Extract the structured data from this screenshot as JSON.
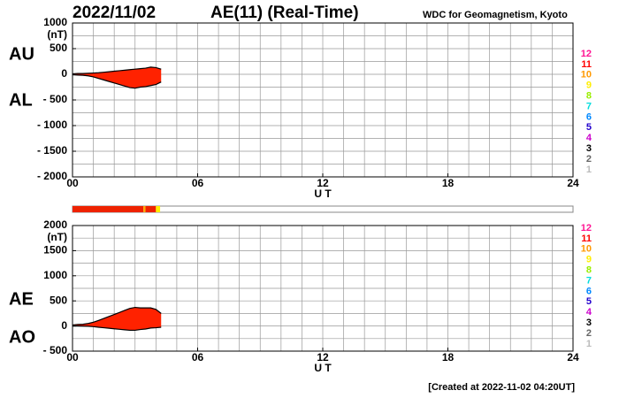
{
  "header": {
    "date": "2022/11/02",
    "title": "AE(11) (Real-Time)",
    "source": "WDC for Geomagnetism, Kyoto"
  },
  "footer": "[Created at 2022-11-02 04:20UT]",
  "station_counts": [
    {
      "label": "12",
      "color": "#ff1493"
    },
    {
      "label": "11",
      "color": "#ff0000"
    },
    {
      "label": "10",
      "color": "#ff9900"
    },
    {
      "label": "9",
      "color": "#ffee00"
    },
    {
      "label": "8",
      "color": "#99ee00"
    },
    {
      "label": "7",
      "color": "#00dddd"
    },
    {
      "label": "6",
      "color": "#0088ff"
    },
    {
      "label": "5",
      "color": "#2200cc"
    },
    {
      "label": "4",
      "color": "#cc00cc"
    },
    {
      "label": "3",
      "color": "#000000"
    },
    {
      "label": "2",
      "color": "#666666"
    },
    {
      "label": "1",
      "color": "#bbbbbb"
    }
  ],
  "coverage": [
    {
      "start": 0,
      "end": 3.4,
      "color": "#ee2200"
    },
    {
      "start": 3.4,
      "end": 3.5,
      "color": "#ffaa00"
    },
    {
      "start": 3.5,
      "end": 4.0,
      "color": "#ee2200"
    },
    {
      "start": 4.0,
      "end": 4.2,
      "color": "#ffee00"
    }
  ],
  "coverage_xlim": [
    0,
    24
  ],
  "chart_data": [
    {
      "type": "area",
      "ylabel": "(nT)",
      "xlabel": "U T",
      "color": "#ff2200",
      "grid": true,
      "x": [
        0,
        0.25,
        0.5,
        0.75,
        1,
        1.25,
        1.5,
        1.75,
        2,
        2.25,
        2.5,
        2.75,
        3,
        3.25,
        3.5,
        3.75,
        4,
        4.25
      ],
      "series": [
        {
          "name": "AU",
          "color": "#000000",
          "values": [
            10,
            15,
            15,
            20,
            25,
            30,
            40,
            50,
            60,
            70,
            80,
            90,
            100,
            110,
            120,
            140,
            130,
            100
          ]
        },
        {
          "name": "AL",
          "color": "#000000",
          "values": [
            -10,
            -15,
            -20,
            -30,
            -50,
            -80,
            -110,
            -140,
            -170,
            -200,
            -230,
            -260,
            -270,
            -250,
            -240,
            -220,
            -200,
            -150
          ]
        }
      ],
      "xlim": [
        0,
        24
      ],
      "xticks": [
        {
          "value": 0,
          "label": "00"
        },
        {
          "value": 6,
          "label": "06"
        },
        12,
        18,
        24
      ],
      "ylim": [
        -2000,
        1000
      ],
      "yticks": [
        1000,
        500,
        0,
        {
          "value": -500,
          "label": "- 500"
        },
        {
          "value": -1000,
          "label": "- 1000"
        },
        {
          "value": -1500,
          "label": "- 1500"
        },
        {
          "value": -2000,
          "label": "- 2000"
        }
      ]
    },
    {
      "type": "area",
      "ylabel": "(nT)",
      "xlabel": "U T",
      "color": "#ff2200",
      "grid": true,
      "x": [
        0,
        0.25,
        0.5,
        0.75,
        1,
        1.25,
        1.5,
        1.75,
        2,
        2.25,
        2.5,
        2.75,
        3,
        3.25,
        3.5,
        3.75,
        4,
        4.25
      ],
      "series": [
        {
          "name": "AE",
          "color": "#000000",
          "values": [
            20,
            30,
            35,
            50,
            75,
            110,
            150,
            190,
            230,
            270,
            310,
            350,
            370,
            360,
            360,
            360,
            330,
            250
          ]
        },
        {
          "name": "AO",
          "color": "#000000",
          "values": [
            0,
            0,
            -2.5,
            -5,
            -12.5,
            -25,
            -35,
            -45,
            -55,
            -65,
            -75,
            -85,
            -85,
            -70,
            -60,
            -40,
            -35,
            -25
          ]
        }
      ],
      "xlim": [
        0,
        24
      ],
      "xticks": [
        {
          "value": 0,
          "label": "00"
        },
        {
          "value": 6,
          "label": "06"
        },
        12,
        18,
        24
      ],
      "ylim": [
        -500,
        2000
      ],
      "yticks": [
        2000,
        1500,
        1000,
        500,
        0,
        {
          "value": -500,
          "label": "- 500"
        }
      ]
    }
  ]
}
